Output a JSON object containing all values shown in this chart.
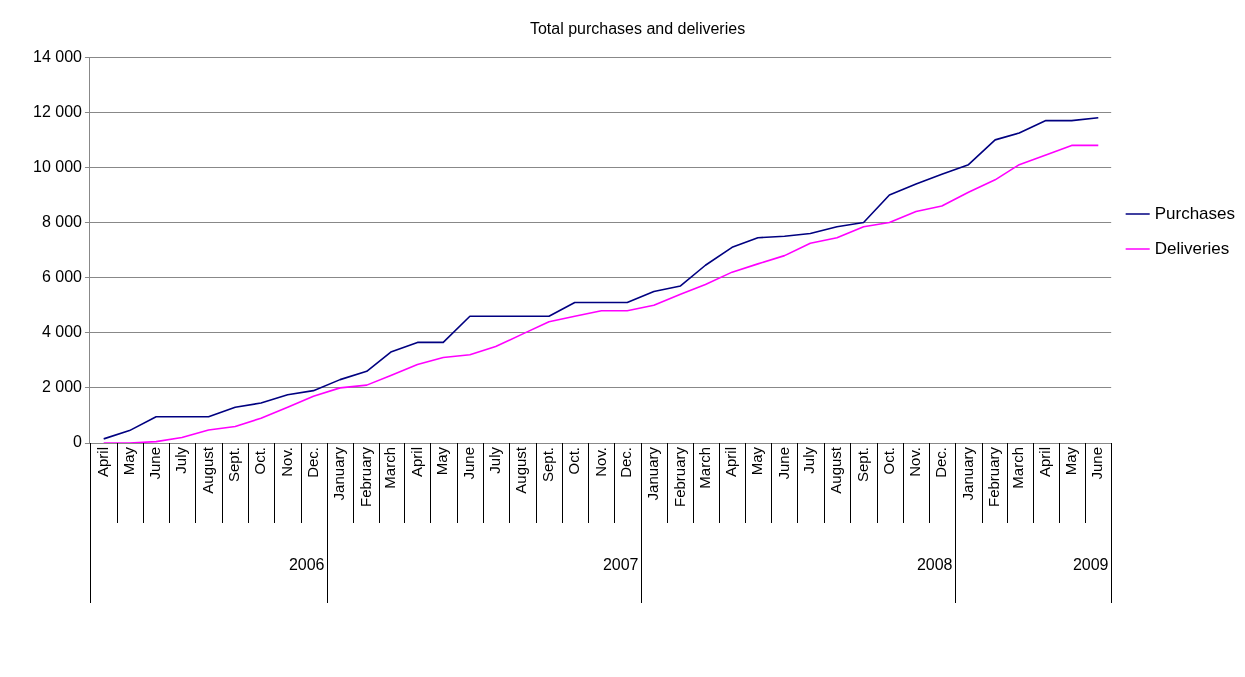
{
  "chart_data": {
    "type": "line",
    "title": "Total purchases and deliveries",
    "x": [
      "2006-04",
      "2006-05",
      "2006-06",
      "2006-07",
      "2006-08",
      "2006-09",
      "2006-10",
      "2006-11",
      "2006-12",
      "2007-01",
      "2007-02",
      "2007-03",
      "2007-04",
      "2007-05",
      "2007-06",
      "2007-07",
      "2007-08",
      "2007-09",
      "2007-10",
      "2007-11",
      "2007-12",
      "2008-01",
      "2008-02",
      "2008-03",
      "2008-04",
      "2008-05",
      "2008-06",
      "2008-07",
      "2008-08",
      "2008-09",
      "2008-10",
      "2008-11",
      "2008-12",
      "2009-01",
      "2009-02",
      "2009-03",
      "2009-04",
      "2009-05",
      "2009-06"
    ],
    "xlim": [
      "2006-03-16",
      "2009-06-16"
    ],
    "xticks": [
      {
        "value": "2006-04",
        "label": "April"
      },
      {
        "value": "2006-05",
        "label": "May"
      },
      {
        "value": "2006-06",
        "label": "June"
      },
      {
        "value": "2006-07",
        "label": "July"
      },
      {
        "value": "2006-08",
        "label": "August"
      },
      {
        "value": "2006-09",
        "label": "Sept."
      },
      {
        "value": "2006-10",
        "label": "Oct."
      },
      {
        "value": "2006-11",
        "label": "Nov."
      },
      {
        "value": "2006-12",
        "label": "Dec."
      },
      {
        "value": "2007-01",
        "label": "January"
      },
      {
        "value": "2007-02",
        "label": "February"
      },
      {
        "value": "2007-03",
        "label": "March"
      },
      {
        "value": "2007-04",
        "label": "April"
      },
      {
        "value": "2007-05",
        "label": "May"
      },
      {
        "value": "2007-06",
        "label": "June"
      },
      {
        "value": "2007-07",
        "label": "July"
      },
      {
        "value": "2007-08",
        "label": "August"
      },
      {
        "value": "2007-09",
        "label": "Sept."
      },
      {
        "value": "2007-10",
        "label": "Oct."
      },
      {
        "value": "2007-11",
        "label": "Nov."
      },
      {
        "value": "2007-12",
        "label": "Dec."
      },
      {
        "value": "2008-01",
        "label": "January"
      },
      {
        "value": "2008-02",
        "label": "February"
      },
      {
        "value": "2008-03",
        "label": "March"
      },
      {
        "value": "2008-04",
        "label": "April"
      },
      {
        "value": "2008-05",
        "label": "May"
      },
      {
        "value": "2008-06",
        "label": "June"
      },
      {
        "value": "2008-07",
        "label": "July"
      },
      {
        "value": "2008-08",
        "label": "August"
      },
      {
        "value": "2008-09",
        "label": "Sept."
      },
      {
        "value": "2008-10",
        "label": "Oct."
      },
      {
        "value": "2008-11",
        "label": "Nov."
      },
      {
        "value": "2008-12",
        "label": "Dec."
      },
      {
        "value": "2009-01",
        "label": "January"
      },
      {
        "value": "2009-02",
        "label": "February"
      },
      {
        "value": "2009-03",
        "label": "March"
      },
      {
        "value": "2009-04",
        "label": "April"
      },
      {
        "value": "2009-05",
        "label": "May"
      },
      {
        "value": "2009-06",
        "label": "June"
      }
    ],
    "series": [
      {
        "name": "Purchases",
        "color": "#000080",
        "values": [
          150,
          450,
          950,
          950,
          950,
          1300,
          1450,
          1750,
          1900,
          2300,
          2600,
          3300,
          3650,
          3650,
          4600,
          4600,
          4600,
          4600,
          5100,
          5100,
          5100,
          5500,
          5700,
          6450,
          7100,
          7450,
          7500,
          7600,
          7850,
          8000,
          9000,
          9400,
          9750,
          10100,
          11000,
          11250,
          11700,
          11700,
          11800
        ]
      },
      {
        "name": "Deliveries",
        "color": "#ff00ff",
        "values": [
          0,
          0,
          50,
          200,
          470,
          600,
          900,
          1300,
          1700,
          2000,
          2100,
          2450,
          2850,
          3100,
          3200,
          3500,
          3950,
          4400,
          4600,
          4800,
          4800,
          5000,
          5400,
          5750,
          6200,
          6500,
          6800,
          7250,
          7450,
          7850,
          8000,
          8400,
          8600,
          9100,
          9550,
          10100,
          10450,
          10800,
          10800
        ]
      }
    ],
    "ylim": [
      0,
      14000
    ],
    "yticks": [
      {
        "value": 0,
        "label": "0"
      },
      {
        "value": 2000,
        "label": "2 000"
      },
      {
        "value": 4000,
        "label": "4 000"
      },
      {
        "value": 6000,
        "label": "6 000"
      },
      {
        "value": 8000,
        "label": "8 000"
      },
      {
        "value": 10000,
        "label": "10 000"
      },
      {
        "value": 12000,
        "label": "12 000"
      },
      {
        "value": 14000,
        "label": "14 000"
      }
    ],
    "annotations": [
      "2006",
      "2007",
      "2008",
      "2009"
    ],
    "grid": "y",
    "legend": "right",
    "marker": "none",
    "line_style": "solid"
  }
}
